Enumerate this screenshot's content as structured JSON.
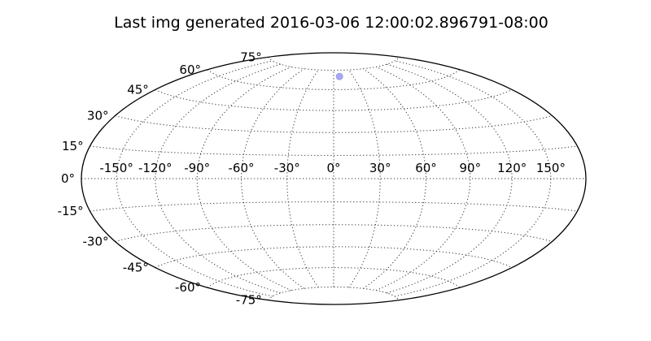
{
  "chart_data": {
    "type": "scatter",
    "projection": "hammer",
    "title": "Last img generated 2016-03-06 12:00:02.896791-08:00",
    "grid": true,
    "longitude_grid": [
      -150,
      -120,
      -90,
      -60,
      -30,
      0,
      30,
      60,
      90,
      120,
      150
    ],
    "latitude_grid": [
      -75,
      -60,
      -45,
      -30,
      -15,
      0,
      15,
      30,
      45,
      60,
      75
    ],
    "longitude_tick_labels": [
      "-150°",
      "-120°",
      "-90°",
      "-60°",
      "-30°",
      "0°",
      "30°",
      "60°",
      "90°",
      "120°",
      "150°"
    ],
    "latitude_tick_labels": [
      "-75°",
      "-60°",
      "-45°",
      "-30°",
      "-15°",
      "0°",
      "15°",
      "30°",
      "45°",
      "60°",
      "75°"
    ],
    "points": [
      {
        "lon": 9,
        "lat": 70
      }
    ],
    "point_color": "#9999ee"
  }
}
